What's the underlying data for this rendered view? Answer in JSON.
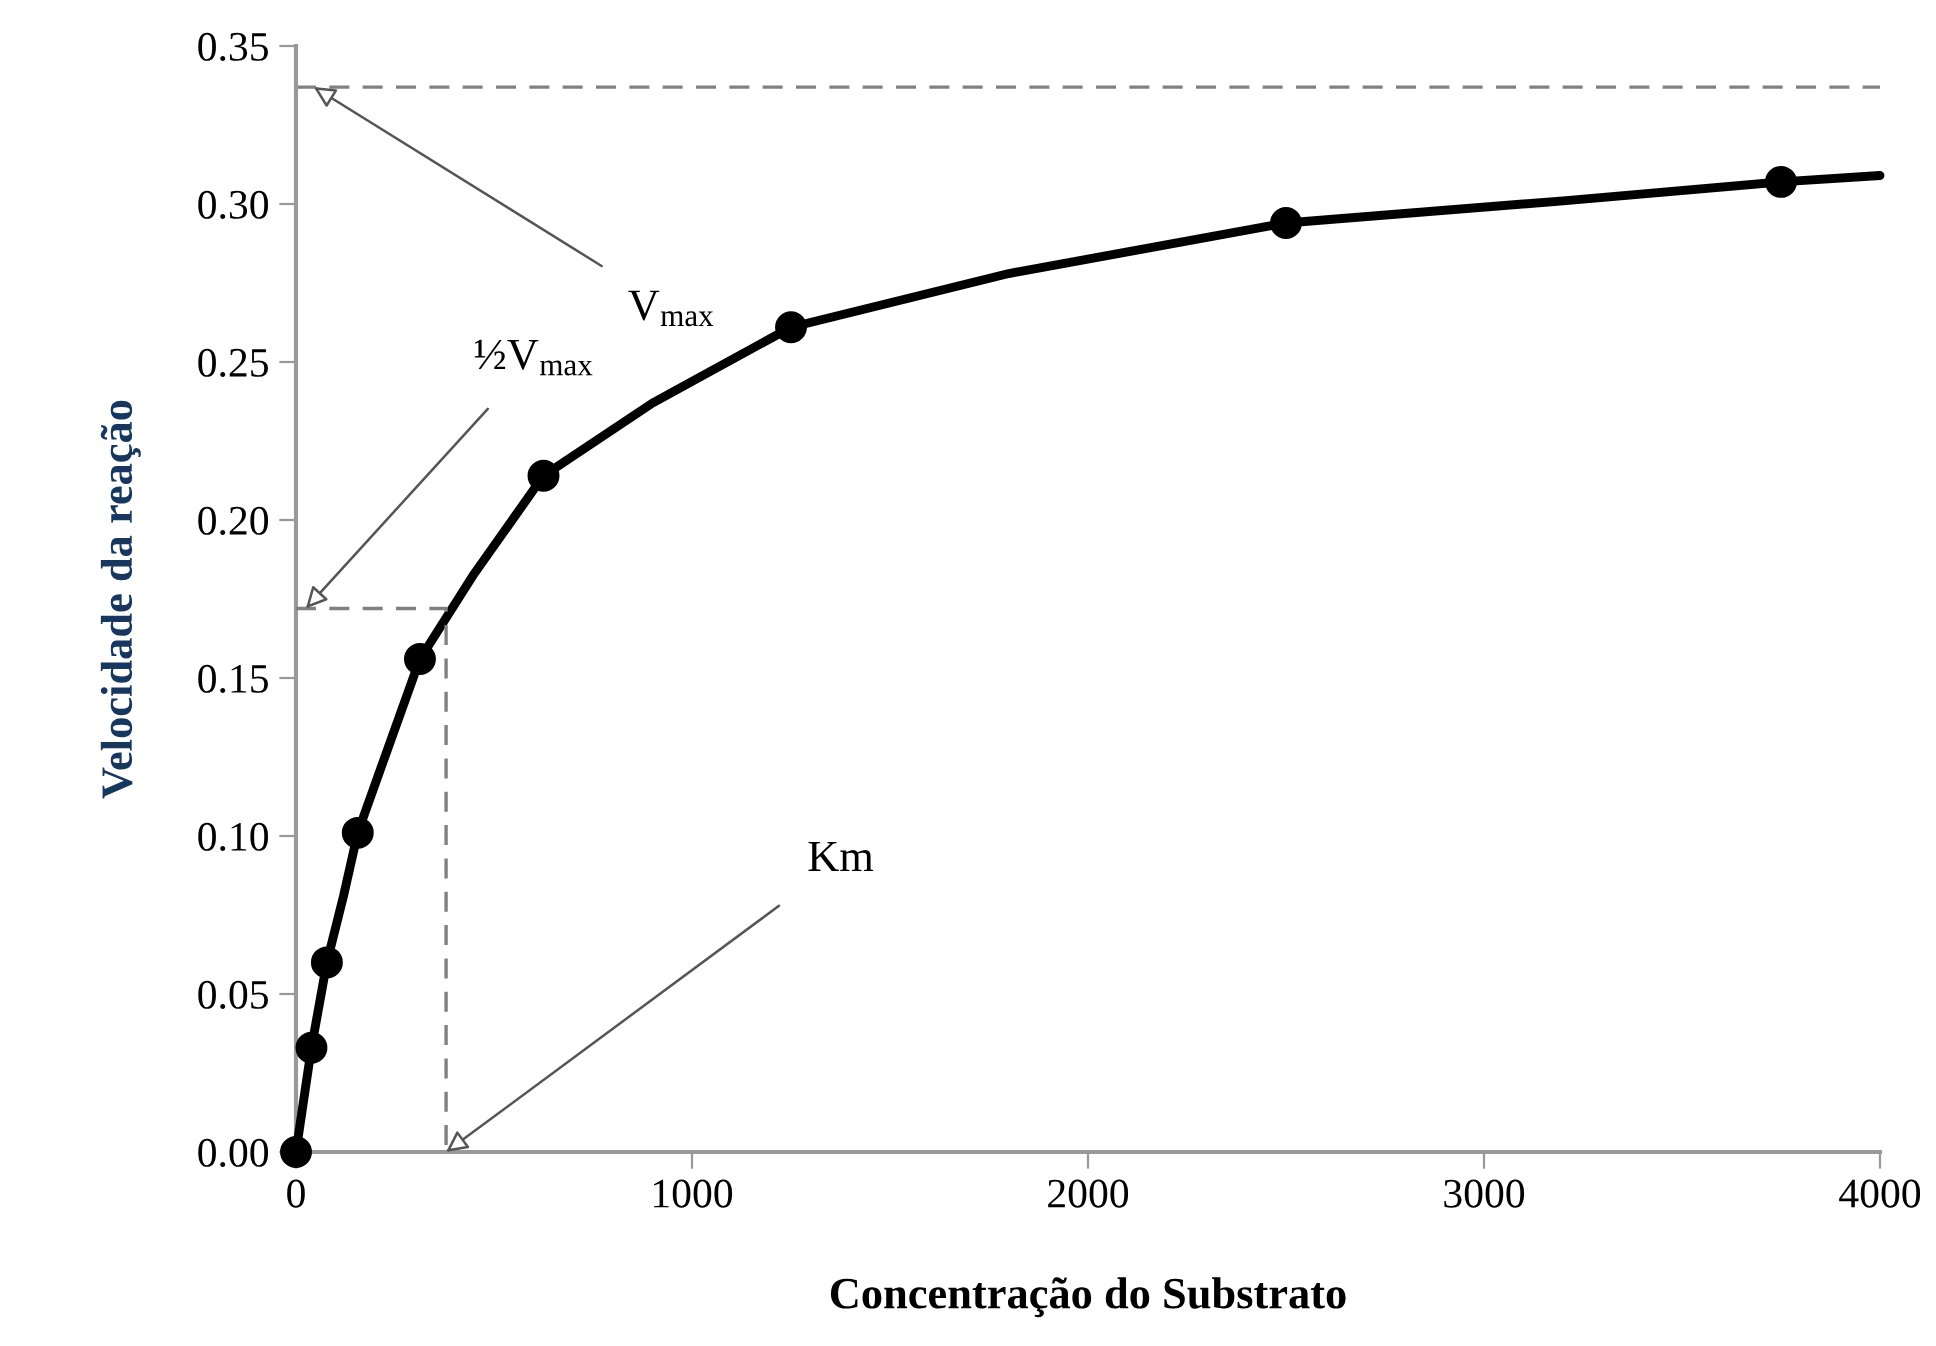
{
  "chart_data": {
    "type": "scatter",
    "xlabel": "Concentração do Substrato",
    "ylabel": "Velocidade da reação",
    "series": [
      {
        "type": "line",
        "color": "#000000",
        "line_style": "solid",
        "marker": "none",
        "x": [
          0,
          20,
          39,
          78,
          120,
          156,
          230,
          313,
          450,
          625,
          900,
          1250,
          1800,
          2500,
          3200,
          3750,
          4000
        ],
        "values": [
          0,
          0.017,
          0.033,
          0.06,
          0.081,
          0.101,
          0.127,
          0.156,
          0.183,
          0.214,
          0.237,
          0.261,
          0.278,
          0.294,
          0.301,
          0.307,
          0.309
        ]
      },
      {
        "color": "#000000",
        "marker": "circle",
        "x": [
          0,
          39,
          78,
          156,
          313,
          625,
          1250,
          2500,
          3750
        ],
        "values": [
          0,
          0.033,
          0.06,
          0.101,
          0.156,
          0.214,
          0.261,
          0.294,
          0.307
        ]
      },
      {
        "type": "line",
        "color": "#808080",
        "line_style": "dashed",
        "marker": "none",
        "x": [
          0,
          379,
          379
        ],
        "values": [
          0.172,
          0.172,
          0
        ]
      }
    ],
    "ref_lines": [
      {
        "axis": "y",
        "value": 0.337,
        "color": "#808080",
        "line_style": "dashed"
      }
    ],
    "annotations": [
      {
        "text": "V$_{max}$",
        "x": 45,
        "y": 0.337
      },
      {
        "text": "½V$_{max}$",
        "x": 25,
        "y": 0.172
      },
      {
        "text": "Km",
        "x": 379,
        "y": 0
      }
    ],
    "xlim": [
      0,
      4000
    ],
    "ylim": [
      0,
      0.35
    ],
    "xticks": [
      0,
      1000,
      2000,
      3000,
      4000
    ],
    "yticks": [
      {
        "value": 0,
        "label": "0.00"
      },
      {
        "value": 0.05,
        "label": "0.05"
      },
      {
        "value": 0.1,
        "label": "0.10"
      },
      {
        "value": 0.15,
        "label": "0.15"
      },
      {
        "value": 0.2,
        "label": "0.20"
      },
      {
        "value": 0.25,
        "label": "0.25"
      },
      {
        "value": 0.3,
        "label": "0.30"
      },
      {
        "value": 0.35,
        "label": "0.35"
      }
    ],
    "grid": false,
    "legend": false
  }
}
